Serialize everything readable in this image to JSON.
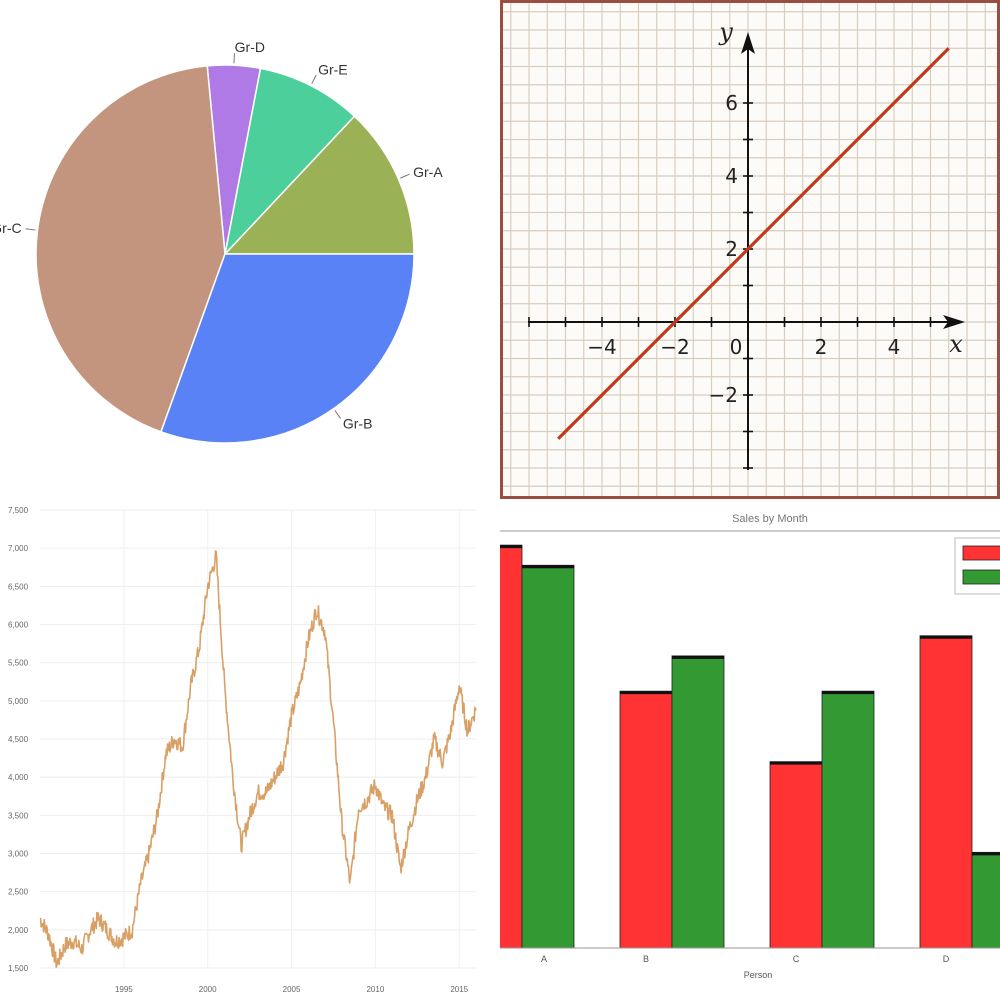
{
  "chart_data": [
    {
      "type": "pie",
      "slices": [
        {
          "label": "Gr-A",
          "value": 13,
          "color": "#9ab255"
        },
        {
          "label": "Gr-E",
          "value": 9,
          "color": "#4ccf9a"
        },
        {
          "label": "Gr-D",
          "value": 4.5,
          "color": "#b07ae6"
        },
        {
          "label": "Gr-C",
          "value": 43,
          "color": "#c3957f"
        },
        {
          "label": "Gr-B",
          "value": 30.5,
          "color": "#5882f6"
        }
      ]
    },
    {
      "type": "line",
      "function": "y = x + 2",
      "xlabel": "x",
      "ylabel": "y",
      "xlim": [
        -6,
        6
      ],
      "ylim": [
        -4,
        8
      ],
      "x_ticks": [
        "−4",
        "−2",
        "0",
        "2",
        "4"
      ],
      "y_ticks": [
        "6",
        "4",
        "2",
        "−2"
      ],
      "grid": true,
      "line_color": "#c0391b",
      "series": [
        {
          "x": [
            -5.2,
            5.5
          ],
          "y": [
            -3.2,
            7.5
          ]
        }
      ]
    },
    {
      "type": "line",
      "y_ticks": [
        "7,500",
        "7,000",
        "6,500",
        "6,000",
        "5,500",
        "5,000",
        "4,500",
        "4,000",
        "3,500",
        "3,000",
        "2,500",
        "2,000",
        "1,500"
      ],
      "x_ticks": [
        "1995",
        "2000",
        "2005",
        "2010",
        "2015"
      ],
      "line_color": "#d9a066",
      "series": [
        {
          "x": [
            1990.0,
            1990.5,
            1991.0,
            1991.5,
            1992.0,
            1992.5,
            1993.0,
            1993.5,
            1994.0,
            1994.5,
            1995.0,
            1995.5,
            1996.0,
            1996.5,
            1997.0,
            1997.5,
            1998.0,
            1998.5,
            1999.0,
            1999.5,
            2000.0,
            2000.5,
            2001.0,
            2001.5,
            2002.0,
            2002.5,
            2003.0,
            2003.5,
            2004.0,
            2004.5,
            2005.0,
            2005.5,
            2006.0,
            2006.5,
            2007.0,
            2007.5,
            2008.0,
            2008.5,
            2009.0,
            2009.5,
            2010.0,
            2010.5,
            2011.0,
            2011.5,
            2012.0,
            2012.5,
            2013.0,
            2013.5,
            2014.0,
            2014.5,
            2015.0,
            2015.5,
            2016.0
          ],
          "y": [
            2150,
            1950,
            1550,
            1800,
            1850,
            1750,
            2000,
            2150,
            2000,
            1850,
            1900,
            2000,
            2600,
            3000,
            3500,
            4300,
            4500,
            4400,
            5200,
            5700,
            6500,
            6900,
            5200,
            4000,
            3100,
            3500,
            3800,
            3800,
            4000,
            4200,
            4800,
            5200,
            5800,
            6200,
            5900,
            4700,
            3400,
            2600,
            3600,
            3700,
            3900,
            3600,
            3500,
            2800,
            3300,
            3700,
            4000,
            4500,
            4200,
            4600,
            5200,
            4600,
            4900
          ]
        }
      ]
    },
    {
      "type": "bar",
      "title": "Sales by Month",
      "categories": [
        "A",
        "B",
        "C",
        "D"
      ],
      "xlabel": "Person",
      "series": [
        {
          "color": "#ff3333",
          "values": [
            8.0,
            5.1,
            3.7,
            6.2
          ]
        },
        {
          "color": "#339933",
          "values": [
            7.6,
            5.8,
            5.1,
            1.9
          ]
        }
      ],
      "ylim": [
        0,
        8.3
      ]
    }
  ]
}
